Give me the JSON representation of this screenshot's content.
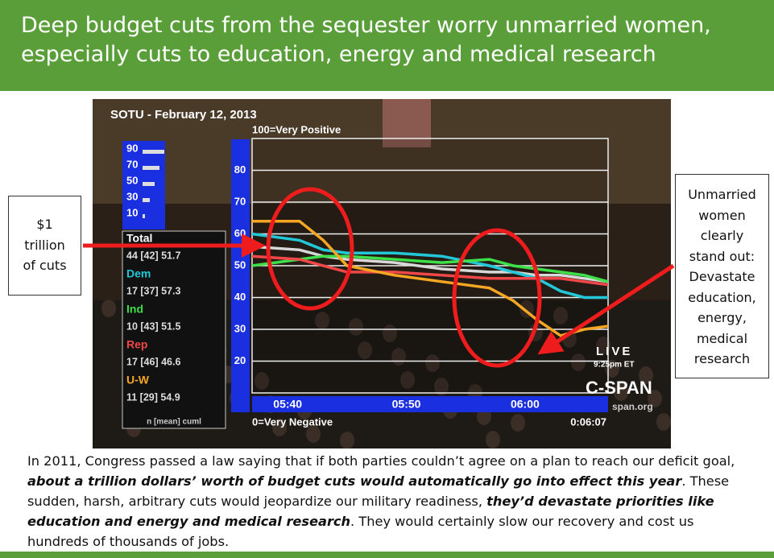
{
  "header": {
    "title_lines": [
      "Deep budget cuts from the sequester worry unmarried women,",
      "especially cuts to education, energy and medical research"
    ]
  },
  "left_callout": {
    "lines": [
      "$1",
      "trillion",
      "of cuts"
    ]
  },
  "right_callout": {
    "lines": [
      "Unmarried",
      "women",
      "clearly",
      "stand out:",
      "Devastate",
      "education,",
      "energy,",
      "medical",
      "research"
    ]
  },
  "video": {
    "caption": "SOTU - February 12, 2013",
    "top_label": "100=Very Positive",
    "bottom_label": "0=Very Negative",
    "timecode": "0:06:07",
    "live": "LIVE",
    "live_time": "9:25pm ET",
    "network": "C-SPAN",
    "site": "span.org",
    "scale_labels": [
      90,
      70,
      50,
      30,
      10
    ],
    "legend_footer": "n [mean] cuml",
    "chart": {
      "type": "line",
      "x": [
        337,
        341,
        343,
        345,
        349,
        353,
        357,
        359,
        361,
        363,
        365,
        367
      ],
      "xlim": [
        337,
        367
      ],
      "xticks": [
        {
          "value": 340,
          "label": "05:40"
        },
        {
          "value": 350,
          "label": "05:50"
        },
        {
          "value": 360,
          "label": "06:00"
        }
      ],
      "ylim": [
        10,
        90
      ],
      "yticks": [
        20,
        30,
        40,
        50,
        60,
        70,
        80
      ],
      "grid": true,
      "series": [
        {
          "name": "Total",
          "stats": "44 [42] 51.7",
          "color": "#d8d8d8",
          "values": [
            56,
            55,
            53,
            52,
            51,
            49,
            48,
            48,
            47,
            47,
            46,
            45
          ]
        },
        {
          "name": "Dem",
          "stats": "17 [37] 57.3",
          "color": "#22c8d8",
          "values": [
            60,
            58,
            55,
            54,
            54,
            53,
            50,
            48,
            46,
            42,
            40,
            40
          ]
        },
        {
          "name": "Ind",
          "stats": "10 [43] 51.5",
          "color": "#3ee04a",
          "values": [
            50,
            52,
            53,
            53,
            52,
            51,
            52,
            50,
            49,
            48,
            47,
            45
          ]
        },
        {
          "name": "Rep",
          "stats": "17 [46] 46.6",
          "color": "#f04848",
          "values": [
            53,
            52,
            50,
            48,
            48,
            47,
            46,
            46,
            46,
            46,
            45,
            44
          ]
        },
        {
          "name": "U-W",
          "stats": "11 [29] 54.9",
          "color": "#f5a623",
          "values": [
            64,
            64,
            58,
            50,
            47,
            45,
            43,
            39,
            33,
            28,
            30,
            31
          ]
        }
      ]
    }
  },
  "body": {
    "parts": [
      {
        "text": "In 2011, Congress passed a law saying that if both parties couldn’t agree on a plan to reach our deficit goal, ",
        "emphasis": false
      },
      {
        "text": "about a trillion dollars’ worth of budget cuts would automatically go into effect this year",
        "emphasis": true
      },
      {
        "text": ". These sudden, harsh, arbitrary cuts would jeopardize our military readiness, ",
        "emphasis": false
      },
      {
        "text": "they’d devastate priorities like education and energy and medical research",
        "emphasis": true
      },
      {
        "text": ". They would certainly slow our recovery and cost us hundreds of thousands of jobs.",
        "emphasis": false
      }
    ]
  }
}
